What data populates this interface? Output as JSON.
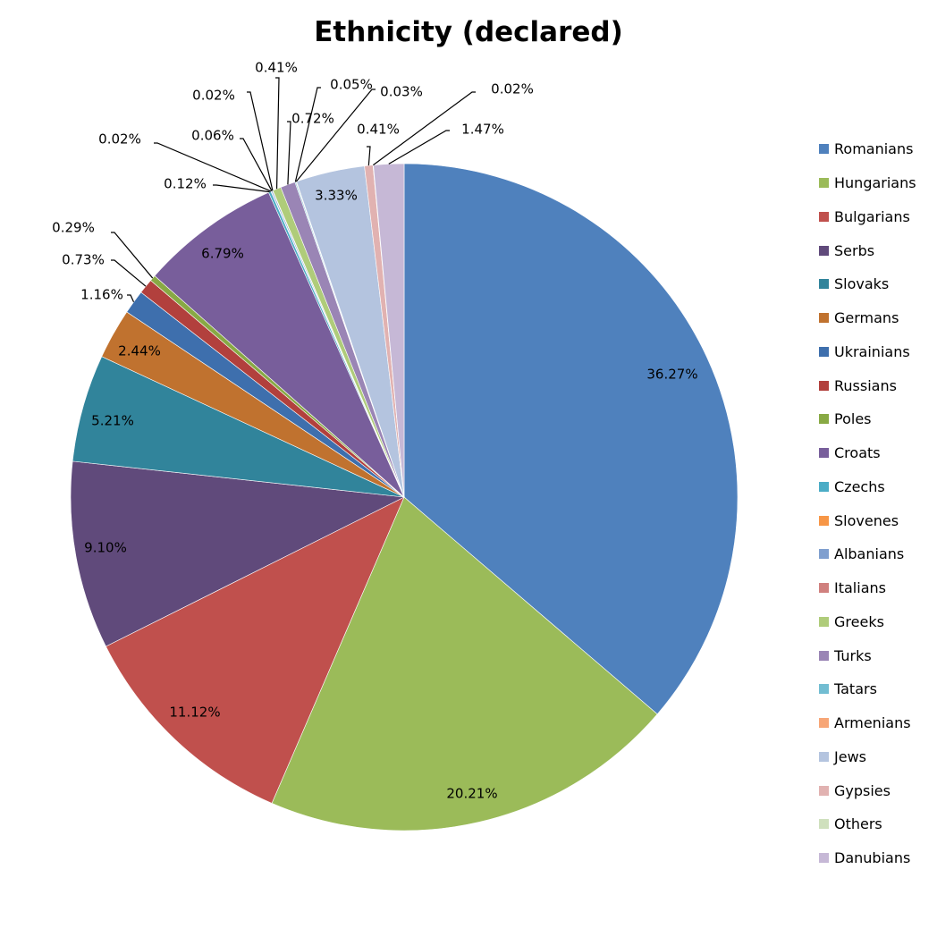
{
  "chart_data": {
    "type": "pie",
    "title": "Ethnicity (declared)",
    "start": "top, clockwise",
    "legend_position": "right",
    "slices": [
      {
        "name": "Romanians",
        "value": 36.27,
        "label": "36.27%",
        "color": "#4f81bd"
      },
      {
        "name": "Hungarians",
        "value": 20.21,
        "label": "20.21%",
        "color": "#9bbb59"
      },
      {
        "name": "Bulgarians",
        "value": 11.12,
        "label": "11.12%",
        "color": "#c0504d"
      },
      {
        "name": "Serbs",
        "value": 9.1,
        "label": "9.10%",
        "color": "#604a7b"
      },
      {
        "name": "Slovaks",
        "value": 5.21,
        "label": "5.21%",
        "color": "#31849b"
      },
      {
        "name": "Germans",
        "value": 2.44,
        "label": "2.44%",
        "color": "#c0722f"
      },
      {
        "name": "Ukrainians",
        "value": 1.16,
        "label": "1.16%",
        "color": "#3e6fad"
      },
      {
        "name": "Russians",
        "value": 0.73,
        "label": "0.73%",
        "color": "#b2403d"
      },
      {
        "name": "Poles",
        "value": 0.29,
        "label": "0.29%",
        "color": "#88a944"
      },
      {
        "name": "Croats",
        "value": 6.79,
        "label": "6.79%",
        "color": "#785e9b"
      },
      {
        "name": "Czechs",
        "value": 0.12,
        "label": "0.12%",
        "color": "#4bacc6"
      },
      {
        "name": "Slovenes",
        "value": 0.02,
        "label": "0.02%",
        "color": "#f79646"
      },
      {
        "name": "Albanians",
        "value": 0.06,
        "label": "0.06%",
        "color": "#7f9fcf"
      },
      {
        "name": "Italians",
        "value": 0.02,
        "label": "0.02%",
        "color": "#d0807e"
      },
      {
        "name": "Greeks",
        "value": 0.41,
        "label": "0.41%",
        "color": "#afcc7a"
      },
      {
        "name": "Turks",
        "value": 0.72,
        "label": "0.72%",
        "color": "#9a85b5"
      },
      {
        "name": "Tatars",
        "value": 0.05,
        "label": "0.05%",
        "color": "#72bdd2"
      },
      {
        "name": "Armenians",
        "value": 0.03,
        "label": "0.03%",
        "color": "#f7a677"
      },
      {
        "name": "Jews",
        "value": 3.33,
        "label": "3.33%",
        "color": "#b4c4df"
      },
      {
        "name": "Gypsies",
        "value": 0.41,
        "label": "0.41%",
        "color": "#e1b2b1"
      },
      {
        "name": "Others",
        "value": 0.02,
        "label": "0.02%",
        "color": "#cfe0bd"
      },
      {
        "name": "Danubians",
        "value": 1.47,
        "label": "1.47%",
        "color": "#c6b8d6"
      }
    ]
  }
}
